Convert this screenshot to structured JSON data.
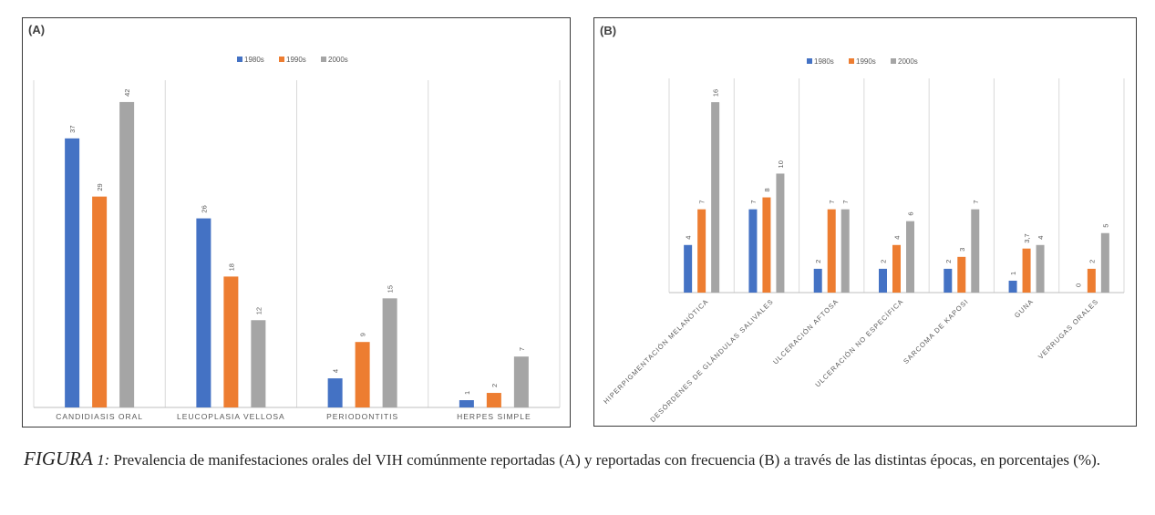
{
  "chart_data": [
    {
      "type": "bar",
      "panel_label": "(A)",
      "categories": [
        "CANDIDIASIS ORAL",
        "LEUCOPLASIA VELLOSA",
        "PERIODONTITIS",
        "HERPES SIMPLE"
      ],
      "series": [
        {
          "name": "1980s",
          "values": [
            37,
            26,
            4,
            1
          ],
          "labels": [
            "37",
            "26",
            "4",
            "1"
          ]
        },
        {
          "name": "1990s",
          "values": [
            29,
            18,
            9,
            2
          ],
          "labels": [
            "29",
            "18",
            "9",
            "2"
          ]
        },
        {
          "name": "2000s",
          "values": [
            42,
            12,
            15,
            7
          ],
          "labels": [
            "42",
            "12",
            "15",
            "7"
          ]
        }
      ],
      "ylim": [
        0,
        45
      ],
      "legend": "top-center",
      "grid": "vertical-separators",
      "colors": [
        "#4472c4",
        "#ed7d31",
        "#a5a5a5"
      ]
    },
    {
      "type": "bar",
      "panel_label": "(B)",
      "categories": [
        "HIPERPIGMENTACIÓN MELANÓTICA",
        "DESÓRDENES DE GLÁNDULAS SALIVALES",
        "ULCERACIÓN AFTOSA",
        "ULCERACIÓN NO ESPECÍFICA",
        "SARCOMA DE KAPOSI",
        "GUNA",
        "VERRUGAS ORALES"
      ],
      "series": [
        {
          "name": "1980s",
          "values": [
            4,
            7,
            2,
            2,
            2,
            1,
            0
          ],
          "labels": [
            "4",
            "7",
            "2",
            "2",
            "2",
            "1",
            "0"
          ]
        },
        {
          "name": "1990s",
          "values": [
            7,
            8,
            7,
            4,
            3,
            3.7,
            2
          ],
          "labels": [
            "7",
            "8",
            "7",
            "4",
            "3",
            "3,7",
            "2"
          ]
        },
        {
          "name": "2000s",
          "values": [
            16,
            10,
            7,
            6,
            7,
            4,
            5
          ],
          "labels": [
            "16",
            "10",
            "7",
            "6",
            "7",
            "4",
            "5"
          ]
        }
      ],
      "ylim": [
        0,
        18
      ],
      "legend": "top-center",
      "grid": "vertical-separators",
      "colors": [
        "#4472c4",
        "#ed7d31",
        "#a5a5a5"
      ]
    }
  ],
  "caption": {
    "fig_label": "FIGURA",
    "fig_num": " 1:",
    "text": " Prevalencia de manifestaciones orales del VIH comúnmente reportadas (A) y reportadas con frecuencia (B) a través de las distintas  épocas, en porcentajes (%)."
  }
}
